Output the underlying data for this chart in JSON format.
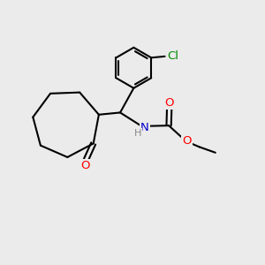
{
  "bg_color": "#ebebeb",
  "bond_color": "#000000",
  "bond_width": 1.5,
  "atom_colors": {
    "O": "#ff0000",
    "N": "#0000cc",
    "Cl": "#008800",
    "H": "#888888"
  },
  "font_size": 9.5
}
